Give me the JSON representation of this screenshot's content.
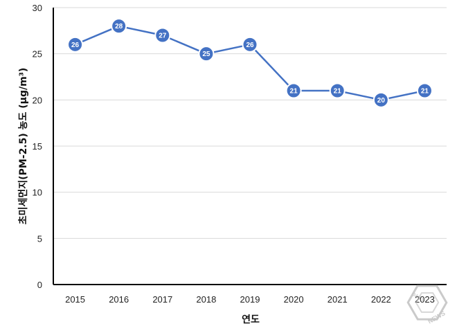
{
  "chart_data": {
    "type": "line",
    "title": "",
    "xlabel": "연도",
    "ylabel": "초미세먼지(PM-2.5) 농도 (μg/m³)",
    "categories": [
      "2015",
      "2016",
      "2017",
      "2018",
      "2019",
      "2020",
      "2021",
      "2022",
      "2023"
    ],
    "series": [
      {
        "values": [
          26,
          28,
          27,
          25,
          26,
          21,
          21,
          20,
          21
        ],
        "data_labels": [
          "26",
          "28",
          "27",
          "25",
          "26",
          "21",
          "21",
          "20",
          "21"
        ]
      }
    ],
    "ylim": [
      0,
      30
    ],
    "yticks": [
      0,
      5,
      10,
      15,
      20,
      25,
      30
    ],
    "grid": true,
    "legend": "none",
    "colors": {
      "line": "#4472c4",
      "marker_fill": "#4472c4",
      "marker_stroke": "#ffffff",
      "grid": "#d9d9d9",
      "axis": "#000000"
    }
  },
  "watermark": {
    "logo_text": "NEWS",
    "logo_text_2": "DAILY"
  }
}
